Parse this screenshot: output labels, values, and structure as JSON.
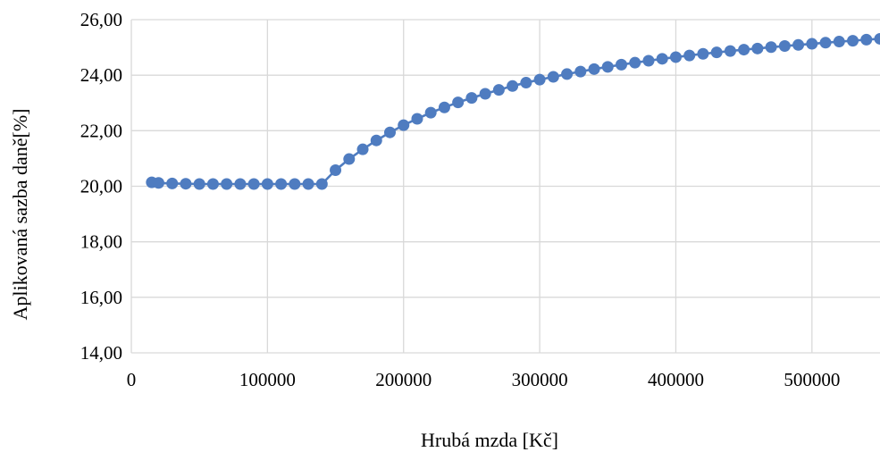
{
  "chart_data": {
    "type": "line",
    "title": "",
    "xlabel": "Hrubá mzda [Kč]",
    "ylabel": "Aplikovaná sazba daně[%]",
    "xlim": [
      0,
      550000
    ],
    "ylim": [
      14,
      26
    ],
    "x_ticks": [
      0,
      100000,
      200000,
      300000,
      400000,
      500000
    ],
    "x_tick_labels": [
      "0",
      "100000",
      "200000",
      "300000",
      "400000",
      "500000"
    ],
    "y_ticks": [
      14,
      16,
      18,
      20,
      22,
      24,
      26
    ],
    "y_tick_labels": [
      "14,00",
      "16,00",
      "18,00",
      "20,00",
      "22,00",
      "24,00",
      "26,00"
    ],
    "grid": true,
    "legend": "none",
    "series_color": "#4f7cc0",
    "grid_color": "#d9d9d9",
    "series": [
      {
        "x": [
          15000,
          20000,
          30000,
          40000,
          50000,
          60000,
          70000,
          80000,
          90000,
          100000,
          110000,
          120000,
          130000,
          140000,
          150000,
          160000,
          170000,
          180000,
          190000,
          200000,
          210000,
          220000,
          230000,
          240000,
          250000,
          260000,
          270000,
          280000,
          290000,
          300000,
          310000,
          320000,
          330000,
          340000,
          350000,
          360000,
          370000,
          380000,
          390000,
          400000,
          410000,
          420000,
          430000,
          440000,
          450000,
          460000,
          470000,
          480000,
          490000,
          500000,
          510000,
          520000,
          530000,
          540000,
          550000
        ],
        "y": [
          20.14,
          20.12,
          20.1,
          20.09,
          20.08,
          20.08,
          20.08,
          20.08,
          20.08,
          20.08,
          20.08,
          20.08,
          20.08,
          20.08,
          20.58,
          20.98,
          21.33,
          21.65,
          21.94,
          22.2,
          22.43,
          22.65,
          22.84,
          23.02,
          23.18,
          23.33,
          23.47,
          23.61,
          23.73,
          23.84,
          23.94,
          24.04,
          24.13,
          24.22,
          24.3,
          24.38,
          24.45,
          24.52,
          24.59,
          24.65,
          24.71,
          24.77,
          24.82,
          24.87,
          24.92,
          24.96,
          25.01,
          25.05,
          25.09,
          25.13,
          25.17,
          25.21,
          25.24,
          25.28,
          25.31
        ]
      }
    ]
  }
}
